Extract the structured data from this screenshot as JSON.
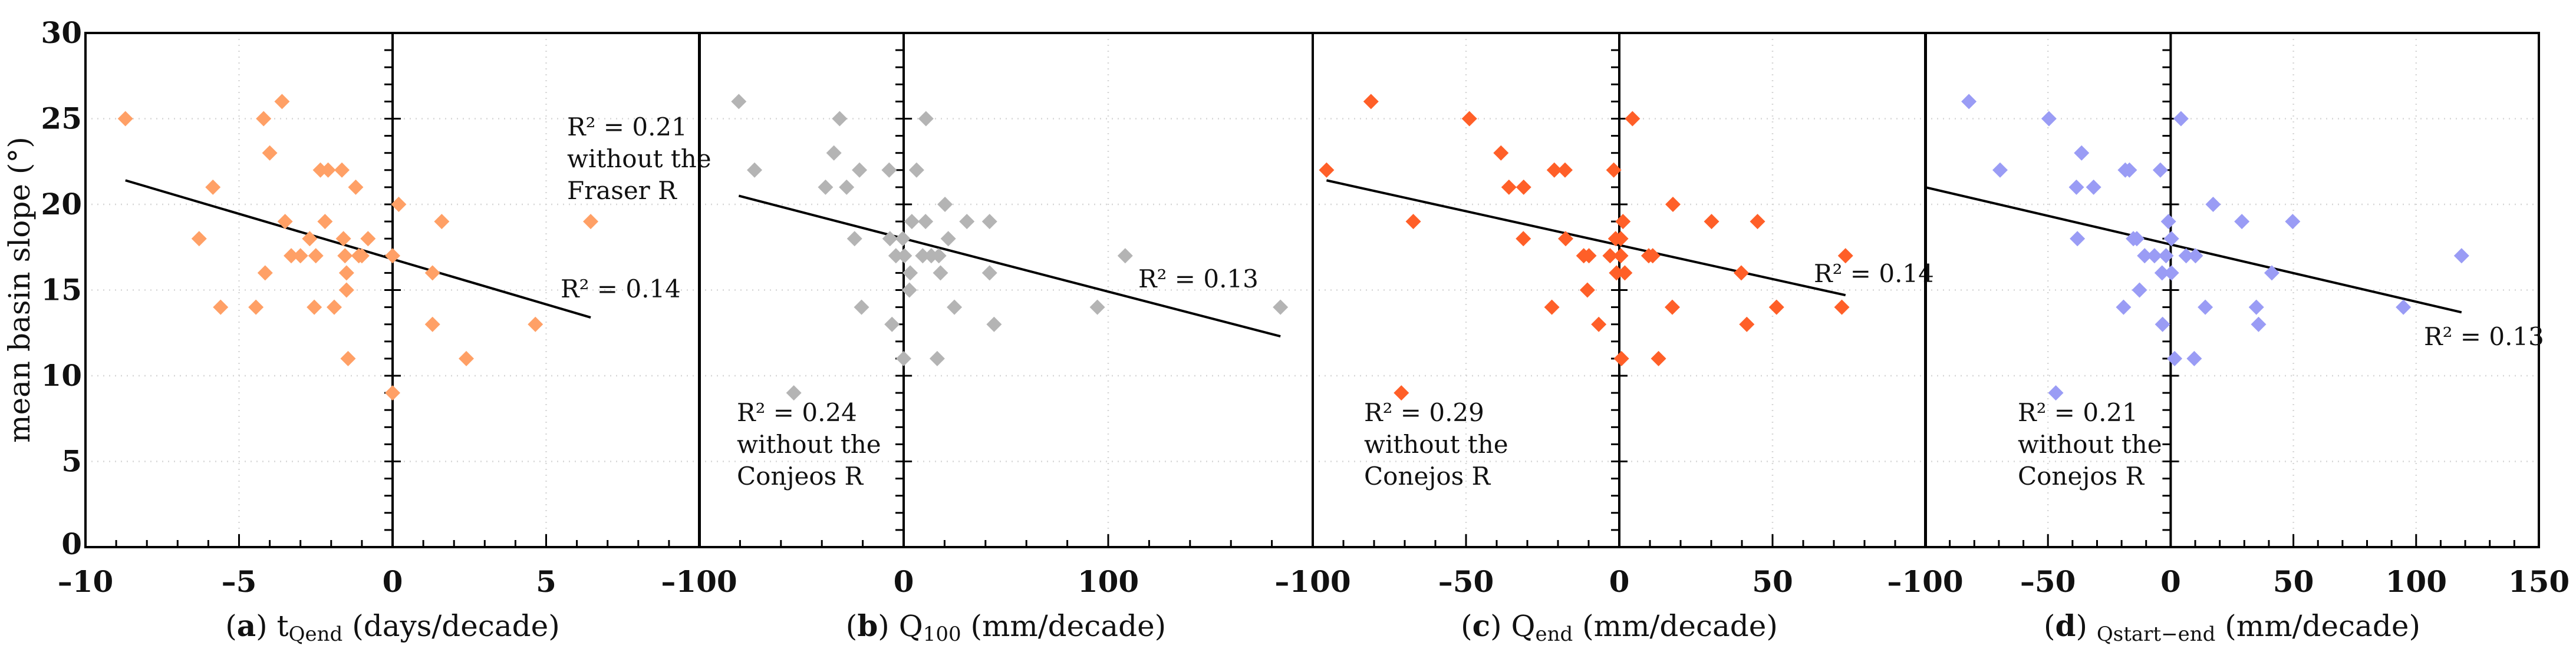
{
  "y_axis_label": "mean basin slope (°)",
  "colors": {
    "a": "#FFA066",
    "b": "#B4B4B4",
    "c": "#FF5F28",
    "d": "#9A9CF5",
    "axis": "#000000",
    "grid": "#D6D6D6"
  },
  "chart_data": [
    {
      "type": "scatter",
      "panel": "a",
      "var": "t",
      "sub": "Qend",
      "unit": "(days/decade)",
      "xlim": [
        -10,
        10
      ],
      "ylim": [
        0,
        30
      ],
      "xticks": [
        -10,
        -5,
        0,
        5
      ],
      "xminor": 1,
      "grid": true,
      "ylabel": "mean basin slope (°)",
      "x": [
        -8.7,
        -3.6,
        -4.2,
        -4.0,
        -5.85,
        -2.35,
        -2.1,
        -1.65,
        -1.2,
        0.2,
        -3.5,
        -2.2,
        1.6,
        6.45,
        -6.3,
        -2.7,
        -1.6,
        -0.8,
        -3.3,
        -3.0,
        -2.5,
        -1.55,
        -1.1,
        -1.0,
        0,
        -4.15,
        -1.5,
        1.3,
        -1.5,
        -5.6,
        -4.45,
        -2.55,
        -1.9,
        1.3,
        4.65,
        -1.45,
        2.4,
        0
      ],
      "y": [
        25,
        26,
        25,
        23,
        21,
        22,
        22,
        22,
        21,
        20,
        19,
        19,
        19,
        19,
        18,
        18,
        18,
        18,
        17,
        17,
        17,
        17,
        17,
        17,
        17,
        16,
        16,
        16,
        15,
        14,
        14,
        14,
        14,
        13,
        13,
        11,
        11,
        9
      ],
      "trendline": {
        "x": [
          -8.7,
          6.45
        ],
        "y": [
          21.4,
          13.4
        ]
      },
      "annotations": [
        [
          "R² = 0.21",
          "without the",
          "Fraser R"
        ],
        [
          "R² = 0.14"
        ]
      ]
    },
    {
      "type": "scatter",
      "panel": "b",
      "var": "Q",
      "sub": "100",
      "unit": "(mm/decade)",
      "xlim": [
        -100,
        200
      ],
      "ylim": [
        0,
        30
      ],
      "xticks": [
        -100,
        0,
        100
      ],
      "xminor": 20,
      "grid": true,
      "x": [
        -80.6,
        -31.3,
        10.9,
        -34.1,
        -72.9,
        -21.6,
        -7.1,
        6.3,
        -38.2,
        -27.9,
        20.2,
        4.0,
        10.7,
        30.9,
        42.0,
        -24,
        -6.7,
        -0.4,
        21.8,
        -3.8,
        0.4,
        9.3,
        13.5,
        17.2,
        108.3,
        3.2,
        18,
        42,
        2.8,
        -20.6,
        24.8,
        94.7,
        184.2,
        -5.7,
        44.2,
        0,
        16.4,
        -53.7
      ],
      "y": [
        26,
        25,
        25,
        23,
        22,
        22,
        22,
        22,
        21,
        21,
        20,
        19,
        19,
        19,
        19,
        18,
        18,
        18,
        18,
        17,
        17,
        17,
        17,
        17,
        17,
        16,
        16,
        16,
        15,
        14,
        14,
        14,
        14,
        13,
        13,
        11,
        11,
        9
      ],
      "trendline": {
        "x": [
          -80.6,
          184.2
        ],
        "y": [
          20.5,
          12.3
        ]
      },
      "annotations": [
        [
          "R² = 0.24",
          "without the",
          "Conjeos R"
        ],
        [
          "R² = 0.13"
        ]
      ]
    },
    {
      "type": "scatter",
      "panel": "c",
      "var": "Q",
      "sub": "end",
      "unit": "(mm/decade)",
      "xlim": [
        -100,
        100
      ],
      "ylim": [
        0,
        30
      ],
      "xticks": [
        -100,
        -50,
        0,
        50
      ],
      "xminor": 10,
      "grid": true,
      "x": [
        -81,
        -48.9,
        4.3,
        -38.6,
        -95.5,
        -21.2,
        -17.7,
        -1.8,
        -36,
        -31.2,
        17.5,
        -67.2,
        1.2,
        30.1,
        45.1,
        -31.3,
        -17.5,
        -1.2,
        0.5,
        -11.6,
        -9.9,
        -3,
        0.5,
        9.6,
        10.9,
        73.8,
        -0.9,
        1.8,
        39.8,
        -10.4,
        -22,
        17.3,
        51.3,
        72.6,
        -6.7,
        41.6,
        0.7,
        12.8,
        -71.1
      ],
      "y": [
        26,
        25,
        25,
        23,
        22,
        22,
        22,
        22,
        21,
        21,
        20,
        19,
        19,
        19,
        19,
        18,
        18,
        18,
        18,
        17,
        17,
        17,
        17,
        17,
        17,
        17,
        16,
        16,
        16,
        15,
        14,
        14,
        14,
        14,
        13,
        13,
        11,
        11,
        9
      ],
      "trendline": {
        "x": [
          -95.5,
          73.8
        ],
        "y": [
          21.4,
          14.7
        ]
      },
      "annotations": [
        [
          "R² = 0.29",
          "without the",
          "Conejos R"
        ],
        [
          "R² = 0.14"
        ]
      ]
    },
    {
      "type": "scatter",
      "panel": "d",
      "var": "",
      "sub": "Qstart−end",
      "unit": "(mm/decade)",
      "xlim": [
        -100,
        150
      ],
      "ylim": [
        0,
        30
      ],
      "xticks": [
        -100,
        -50,
        0,
        50,
        100,
        150
      ],
      "xminor": 10,
      "grid": true,
      "x": [
        -82.2,
        -49.6,
        4.2,
        -36.3,
        -69.5,
        -18.5,
        -16.8,
        -4.2,
        -38.4,
        -31.4,
        17.3,
        -0.9,
        29,
        49.7,
        -38,
        -15.2,
        -13.8,
        0.3,
        -10.6,
        -6.6,
        -1.9,
        6.3,
        10.1,
        118.5,
        -3.5,
        0.3,
        41.2,
        -12.7,
        -19.2,
        14.1,
        34.9,
        94.8,
        -3.3,
        35.8,
        1.6,
        9.6,
        -46.8
      ],
      "y": [
        26,
        25,
        25,
        23,
        22,
        22,
        22,
        22,
        21,
        21,
        20,
        19,
        19,
        19,
        18,
        18,
        18,
        18,
        17,
        17,
        17,
        17,
        17,
        17,
        16,
        16,
        16,
        15,
        14,
        14,
        14,
        14,
        13,
        13,
        11,
        11,
        9
      ],
      "trendline": {
        "x": [
          -100,
          118.5
        ],
        "y": [
          21.0,
          13.7
        ]
      },
      "annotations": [
        [
          "R² = 0.21",
          "without the",
          "Conejos R"
        ],
        [
          "R² = 0.13"
        ]
      ]
    }
  ]
}
